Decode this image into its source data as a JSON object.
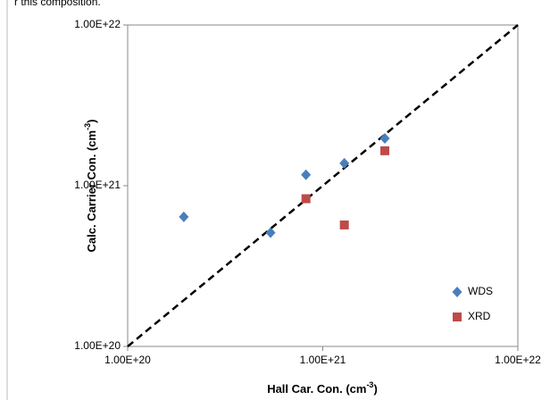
{
  "chart_data": {
    "type": "scatter",
    "context_text": "r this composition.",
    "xlabel": [
      "Hall Car. Con. (cm",
      "-3",
      ")"
    ],
    "ylabel": [
      "Calc. Carrier Con. (cm",
      "-3",
      ")"
    ],
    "xscale": "log",
    "yscale": "log",
    "xlim": [
      1e+20,
      1e+22
    ],
    "ylim": [
      1e+20,
      1e+22
    ],
    "xticks": [
      {
        "value": 1e+20,
        "label": "1.00E+20"
      },
      {
        "value": 1e+21,
        "label": "1.00E+21"
      },
      {
        "value": 1e+22,
        "label": "1.00E+22"
      }
    ],
    "yticks": [
      {
        "value": 1e+20,
        "label": "1.00E+20"
      },
      {
        "value": 1e+21,
        "label": "1.00E+21"
      },
      {
        "value": 1e+22,
        "label": "1.00E+22"
      }
    ],
    "diagonal": true,
    "legend": "lower right",
    "series": [
      {
        "name": "WDS",
        "color": "#4a7ebb",
        "marker": "diamond",
        "x": [
          1.94e+20,
          5.4e+20,
          8.2e+20,
          1.29e+21,
          2.08e+21
        ],
        "values": [
          6.4e+20,
          5.1e+20,
          1.17e+21,
          1.38e+21,
          1.97e+21
        ]
      },
      {
        "name": "XRD",
        "color": "#be4b48",
        "marker": "square",
        "x": [
          8.2e+20,
          1.29e+21,
          2.08e+21
        ],
        "values": [
          8.3e+20,
          5.7e+20,
          1.65e+21
        ]
      }
    ]
  }
}
